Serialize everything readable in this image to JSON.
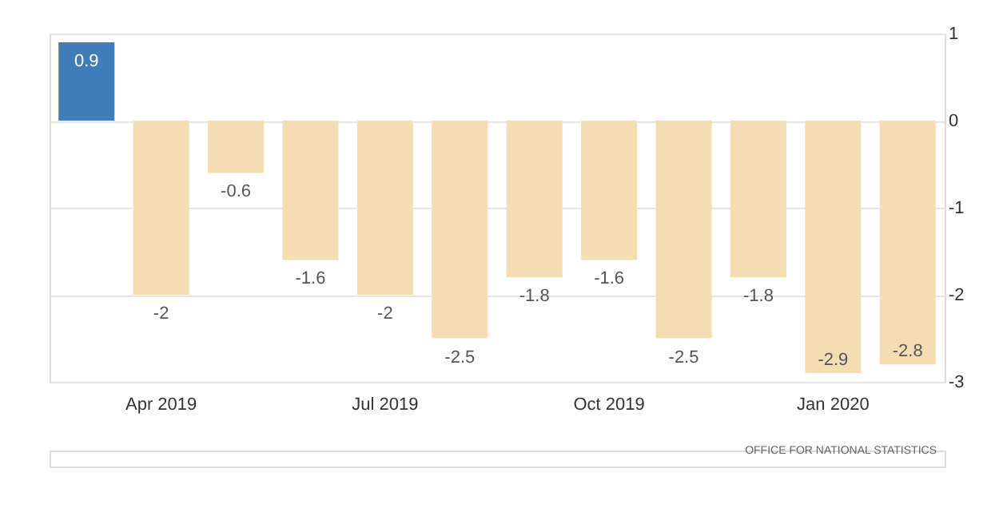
{
  "chart_data": {
    "type": "bar",
    "categories": [
      null,
      "Apr 2019",
      null,
      null,
      "Jul 2019",
      null,
      null,
      "Oct 2019",
      null,
      null,
      "Jan 2020",
      null
    ],
    "values": [
      0.9,
      -2,
      -0.6,
      -1.6,
      -2,
      -2.5,
      -1.8,
      -1.6,
      -2.5,
      -1.8,
      -2.9,
      -2.8
    ],
    "colors": [
      "#3f7cb9",
      "#f4ddb2",
      "#f4ddb2",
      "#f4ddb2",
      "#f4ddb2",
      "#f4ddb2",
      "#f4ddb2",
      "#f4ddb2",
      "#f4ddb2",
      "#f4ddb2",
      "#f4ddb2",
      "#f4ddb2"
    ],
    "ylim": [
      -3,
      1
    ],
    "yticks": [
      -3,
      -2,
      -1,
      0,
      1
    ],
    "grid": "y",
    "data_labels": true,
    "annotations": [
      "OFFICE FOR NATIONAL STATISTICS"
    ]
  }
}
